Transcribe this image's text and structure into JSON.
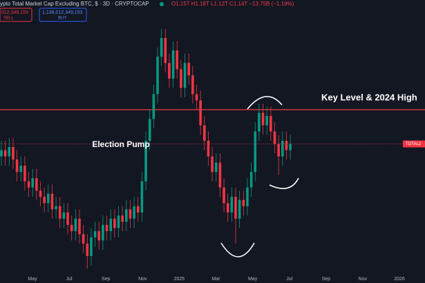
{
  "header": {
    "symbol": "ypto Total Market Cap Excluding BTC, $ · 3D · CRYPTOCAP",
    "ohlc": "O1.15T H1.18T L1.12T C1.14T −13.75B (−1.19%)",
    "sell_price": "012,349,153",
    "sell": "SELL",
    "buy_price": "1,138,012,349,153",
    "buy": "BUY"
  },
  "chart_data": {
    "type": "candlestick",
    "annotations": [
      "Election Pump",
      "Key Level & 2024 High"
    ],
    "price_label": "TOTAL2",
    "x_labels": [
      "May",
      "Jul",
      "Sep",
      "Nov",
      "2025",
      "Mar",
      "May",
      "Jul",
      "Sep",
      "Nov",
      "2026"
    ],
    "ylim": [
      0.72,
      1.58
    ],
    "key_level": 1.25,
    "price_line": 1.14,
    "up_color": "#089981",
    "down_color": "#f23645",
    "open": [
      1.1,
      1.12,
      1.1,
      1.13,
      1.09,
      1.05,
      1.07,
      1.02,
      1.0,
      1.03,
      0.99,
      0.97,
      0.95,
      0.98,
      0.93,
      0.94,
      0.9,
      0.92,
      0.88,
      0.86,
      0.9,
      0.85,
      0.82,
      0.78,
      0.84,
      0.86,
      0.83,
      0.88,
      0.86,
      0.9,
      0.87,
      0.91,
      0.89,
      0.93,
      0.9,
      0.94,
      0.92,
      1.02,
      1.15,
      1.22,
      1.3,
      1.42,
      1.48,
      1.4,
      1.35,
      1.44,
      1.38,
      1.32,
      1.4,
      1.36,
      1.3,
      1.28,
      1.2,
      1.15,
      1.1,
      1.05,
      1.08,
      1.0,
      0.95,
      0.92,
      0.97,
      0.9,
      0.96,
      0.94,
      1.0,
      1.05,
      1.18,
      1.24,
      1.2,
      1.23,
      1.18,
      1.14,
      1.1,
      1.15,
      1.12
    ],
    "high": [
      1.15,
      1.15,
      1.16,
      1.16,
      1.12,
      1.1,
      1.1,
      1.05,
      1.06,
      1.06,
      1.02,
      1.0,
      1.01,
      1.01,
      0.97,
      0.97,
      0.95,
      0.95,
      0.91,
      0.93,
      0.93,
      0.88,
      0.85,
      0.87,
      0.89,
      0.89,
      0.91,
      0.91,
      0.93,
      0.93,
      0.94,
      0.94,
      0.96,
      0.96,
      0.97,
      0.97,
      1.05,
      1.18,
      1.25,
      1.33,
      1.45,
      1.51,
      1.51,
      1.43,
      1.47,
      1.47,
      1.41,
      1.43,
      1.43,
      1.39,
      1.33,
      1.31,
      1.23,
      1.18,
      1.13,
      1.11,
      1.11,
      1.03,
      0.98,
      1.0,
      1.0,
      0.99,
      0.99,
      1.03,
      1.08,
      1.21,
      1.27,
      1.27,
      1.26,
      1.26,
      1.21,
      1.17,
      1.18,
      1.18,
      1.17
    ],
    "low": [
      1.07,
      1.07,
      1.07,
      1.06,
      1.02,
      1.02,
      0.99,
      0.97,
      0.97,
      0.96,
      0.94,
      0.92,
      0.92,
      0.9,
      0.9,
      0.87,
      0.87,
      0.85,
      0.83,
      0.83,
      0.82,
      0.79,
      0.74,
      0.75,
      0.81,
      0.8,
      0.8,
      0.83,
      0.83,
      0.84,
      0.84,
      0.86,
      0.86,
      0.87,
      0.87,
      0.89,
      0.89,
      0.99,
      1.12,
      1.19,
      1.27,
      1.39,
      1.37,
      1.32,
      1.32,
      1.35,
      1.29,
      1.29,
      1.33,
      1.27,
      1.25,
      1.17,
      1.12,
      1.07,
      1.02,
      1.02,
      0.97,
      0.92,
      0.89,
      0.89,
      0.82,
      0.87,
      0.91,
      0.91,
      0.97,
      1.02,
      1.15,
      1.17,
      1.17,
      1.15,
      1.11,
      1.04,
      1.07,
      1.09,
      1.09
    ],
    "close": [
      1.12,
      1.1,
      1.13,
      1.09,
      1.05,
      1.07,
      1.02,
      1.0,
      1.03,
      0.99,
      0.97,
      0.95,
      0.98,
      0.93,
      0.94,
      0.9,
      0.92,
      0.88,
      0.86,
      0.9,
      0.85,
      0.82,
      0.78,
      0.84,
      0.86,
      0.83,
      0.88,
      0.86,
      0.9,
      0.87,
      0.91,
      0.89,
      0.93,
      0.9,
      0.94,
      0.92,
      1.02,
      1.15,
      1.22,
      1.3,
      1.42,
      1.48,
      1.4,
      1.35,
      1.44,
      1.38,
      1.32,
      1.4,
      1.36,
      1.3,
      1.28,
      1.2,
      1.15,
      1.1,
      1.05,
      1.08,
      1.0,
      0.95,
      0.92,
      0.97,
      0.9,
      0.96,
      0.94,
      1.0,
      1.05,
      1.18,
      1.24,
      1.2,
      1.23,
      1.18,
      1.14,
      1.1,
      1.15,
      1.12,
      1.14
    ]
  }
}
